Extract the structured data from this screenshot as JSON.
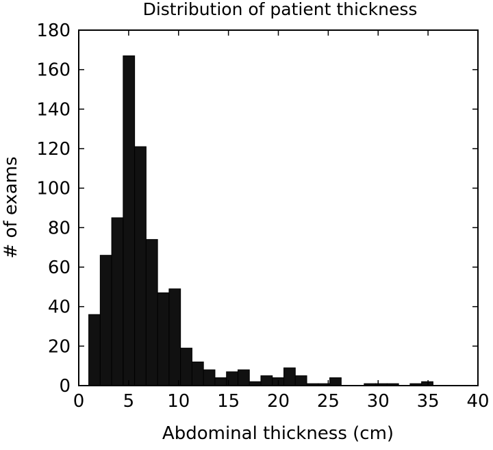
{
  "chart_data": {
    "type": "bar",
    "title": "Distribution of patient thickness",
    "xlabel": "Abdominal thickness (cm)",
    "ylabel": "# of exams",
    "xlim": [
      0,
      40
    ],
    "ylim": [
      0,
      180
    ],
    "xticks": [
      0,
      5,
      10,
      15,
      20,
      25,
      30,
      35,
      40
    ],
    "yticks": [
      0,
      20,
      40,
      60,
      80,
      100,
      120,
      140,
      160,
      180
    ],
    "grid": false,
    "bar_color": "#111111",
    "bin_width": 1.15,
    "bins": [
      {
        "x0": 1.0,
        "count": 36
      },
      {
        "x0": 2.15,
        "count": 66
      },
      {
        "x0": 3.3,
        "count": 85
      },
      {
        "x0": 4.45,
        "count": 167
      },
      {
        "x0": 5.6,
        "count": 121
      },
      {
        "x0": 6.75,
        "count": 74
      },
      {
        "x0": 7.9,
        "count": 47
      },
      {
        "x0": 9.05,
        "count": 49
      },
      {
        "x0": 10.2,
        "count": 19
      },
      {
        "x0": 11.35,
        "count": 12
      },
      {
        "x0": 12.5,
        "count": 8
      },
      {
        "x0": 13.65,
        "count": 4
      },
      {
        "x0": 14.8,
        "count": 7
      },
      {
        "x0": 15.95,
        "count": 8
      },
      {
        "x0": 17.1,
        "count": 2
      },
      {
        "x0": 18.25,
        "count": 5
      },
      {
        "x0": 19.4,
        "count": 4
      },
      {
        "x0": 20.55,
        "count": 9
      },
      {
        "x0": 21.7,
        "count": 5
      },
      {
        "x0": 22.85,
        "count": 1
      },
      {
        "x0": 24.0,
        "count": 1
      },
      {
        "x0": 25.15,
        "count": 4
      },
      {
        "x0": 26.3,
        "count": 0
      },
      {
        "x0": 27.45,
        "count": 0
      },
      {
        "x0": 28.6,
        "count": 1
      },
      {
        "x0": 29.75,
        "count": 1
      },
      {
        "x0": 30.9,
        "count": 1
      },
      {
        "x0": 32.05,
        "count": 0
      },
      {
        "x0": 33.2,
        "count": 1
      },
      {
        "x0": 34.35,
        "count": 2
      }
    ]
  }
}
